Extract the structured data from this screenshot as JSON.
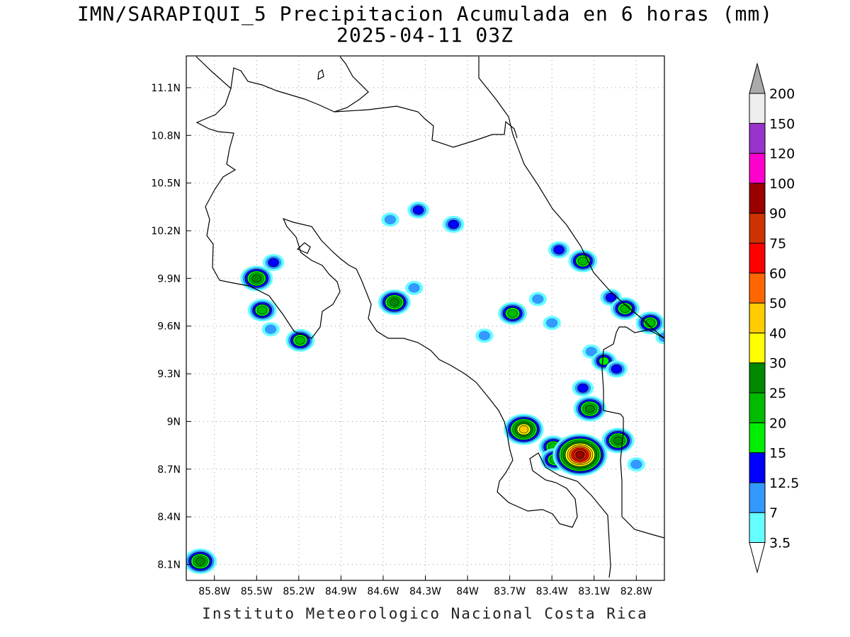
{
  "title_line1": "IMN/SARAPIQUI_5 Precipitacion Acumulada en 6 horas (mm)",
  "title_line2": "2025-04-11 03Z",
  "footer": "Instituto Meteorologico Nacional Costa Rica",
  "map_extent": {
    "lon_range": [
      -86.0,
      -82.6
    ],
    "lat_range": [
      8.0,
      11.3
    ]
  },
  "lat_ticks": [
    {
      "value": 11.1,
      "label": "11.1N"
    },
    {
      "value": 10.8,
      "label": "10.8N"
    },
    {
      "value": 10.5,
      "label": "10.5N"
    },
    {
      "value": 10.2,
      "label": "10.2N"
    },
    {
      "value": 9.9,
      "label": "9.9N"
    },
    {
      "value": 9.6,
      "label": "9.6N"
    },
    {
      "value": 9.3,
      "label": "9.3N"
    },
    {
      "value": 9.0,
      "label": "9N"
    },
    {
      "value": 8.7,
      "label": "8.7N"
    },
    {
      "value": 8.4,
      "label": "8.4N"
    },
    {
      "value": 8.1,
      "label": "8.1N"
    }
  ],
  "lon_ticks": [
    {
      "value": -85.8,
      "label": "85.8W"
    },
    {
      "value": -85.5,
      "label": "85.5W"
    },
    {
      "value": -85.2,
      "label": "85.2W"
    },
    {
      "value": -84.9,
      "label": "84.9W"
    },
    {
      "value": -84.6,
      "label": "84.6W"
    },
    {
      "value": -84.3,
      "label": "84.3W"
    },
    {
      "value": -84.0,
      "label": "84W"
    },
    {
      "value": -83.7,
      "label": "83.7W"
    },
    {
      "value": -83.4,
      "label": "83.4W"
    },
    {
      "value": -83.1,
      "label": "83.1W"
    },
    {
      "value": -82.8,
      "label": "82.8W"
    }
  ],
  "colorbar": {
    "labels": [
      "3.5",
      "7",
      "12.5",
      "15",
      "20",
      "25",
      "30",
      "40",
      "50",
      "60",
      "75",
      "90",
      "100",
      "120",
      "150",
      "200"
    ],
    "colors": [
      "#66ffff",
      "#3399ff",
      "#0000ff",
      "#00ee00",
      "#00bb00",
      "#008800",
      "#ffff00",
      "#ffcc00",
      "#ff6600",
      "#ff0000",
      "#cc3300",
      "#990000",
      "#ff00cc",
      "#9933cc",
      "#eeeeee",
      "#aaaaaa"
    ]
  },
  "precip_cells": [
    {
      "lon": -85.5,
      "lat": 9.9,
      "level": 5
    },
    {
      "lon": -85.38,
      "lat": 10.0,
      "level": 2
    },
    {
      "lon": -85.46,
      "lat": 9.7,
      "level": 4
    },
    {
      "lon": -85.4,
      "lat": 9.58,
      "level": 1
    },
    {
      "lon": -85.19,
      "lat": 9.51,
      "level": 4
    },
    {
      "lon": -84.52,
      "lat": 9.75,
      "level": 5
    },
    {
      "lon": -84.38,
      "lat": 9.84,
      "level": 1
    },
    {
      "lon": -84.35,
      "lat": 10.33,
      "level": 2
    },
    {
      "lon": -84.1,
      "lat": 10.24,
      "level": 2
    },
    {
      "lon": -84.55,
      "lat": 10.27,
      "level": 1
    },
    {
      "lon": -83.68,
      "lat": 9.68,
      "level": 4
    },
    {
      "lon": -83.5,
      "lat": 9.77,
      "level": 1
    },
    {
      "lon": -83.35,
      "lat": 10.08,
      "level": 2
    },
    {
      "lon": -83.18,
      "lat": 10.01,
      "level": 4
    },
    {
      "lon": -82.98,
      "lat": 9.78,
      "level": 2
    },
    {
      "lon": -82.88,
      "lat": 9.71,
      "level": 4
    },
    {
      "lon": -82.7,
      "lat": 9.62,
      "level": 4
    },
    {
      "lon": -82.6,
      "lat": 9.53,
      "level": 1
    },
    {
      "lon": -83.12,
      "lat": 9.44,
      "level": 1
    },
    {
      "lon": -83.03,
      "lat": 9.38,
      "level": 3
    },
    {
      "lon": -82.94,
      "lat": 9.33,
      "level": 2
    },
    {
      "lon": -83.18,
      "lat": 9.21,
      "level": 2
    },
    {
      "lon": -83.13,
      "lat": 9.08,
      "level": 5
    },
    {
      "lon": -83.6,
      "lat": 8.95,
      "level": 7
    },
    {
      "lon": -83.39,
      "lat": 8.84,
      "level": 4
    },
    {
      "lon": -83.38,
      "lat": 8.76,
      "level": 4
    },
    {
      "lon": -83.2,
      "lat": 8.79,
      "level": 11
    },
    {
      "lon": -82.93,
      "lat": 8.88,
      "level": 5
    },
    {
      "lon": -83.88,
      "lat": 9.54,
      "level": 1
    },
    {
      "lon": -85.9,
      "lat": 8.12,
      "level": 5
    },
    {
      "lon": -83.4,
      "lat": 9.62,
      "level": 1
    },
    {
      "lon": -82.8,
      "lat": 8.73,
      "level": 1
    }
  ]
}
